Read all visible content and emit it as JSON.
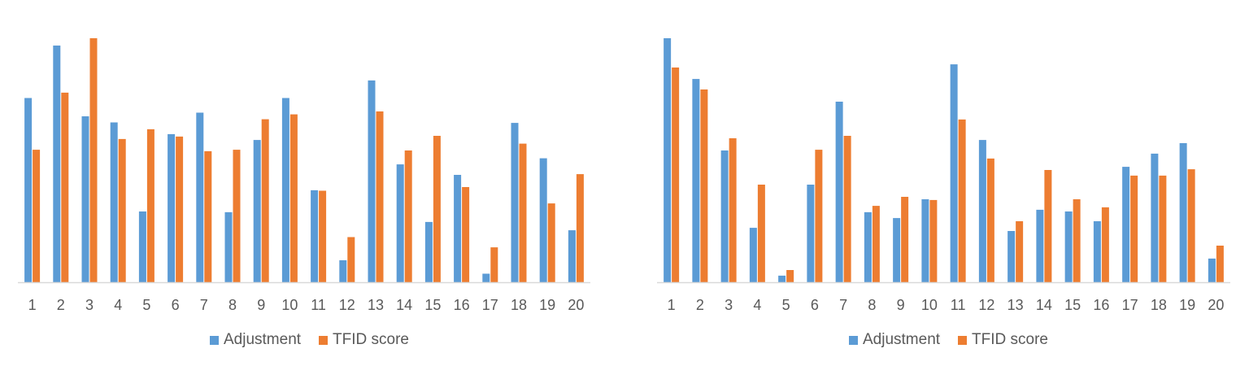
{
  "colors": {
    "adjustment": "#5B9BD5",
    "tfid": "#ED7D31",
    "axis": "#D9D9D9",
    "text": "#595959"
  },
  "chart_data": [
    {
      "type": "bar",
      "categories": [
        "1",
        "2",
        "3",
        "4",
        "5",
        "6",
        "7",
        "8",
        "9",
        "10",
        "11",
        "12",
        "13",
        "14",
        "15",
        "16",
        "17",
        "18",
        "19",
        "20"
      ],
      "series": [
        {
          "name": "Adjustment",
          "values": [
            0.755,
            0.97,
            0.68,
            0.655,
            0.29,
            0.607,
            0.695,
            0.287,
            0.583,
            0.755,
            0.377,
            0.09,
            0.827,
            0.483,
            0.247,
            0.44,
            0.035,
            0.653,
            0.508,
            0.213
          ]
        },
        {
          "name": "TFID score",
          "values": [
            0.543,
            0.777,
            1.0,
            0.587,
            0.627,
            0.597,
            0.537,
            0.543,
            0.668,
            0.688,
            0.375,
            0.185,
            0.7,
            0.54,
            0.6,
            0.39,
            0.143,
            0.568,
            0.323,
            0.443
          ]
        }
      ],
      "legend_position": "bottom",
      "grid": false
    },
    {
      "type": "bar",
      "categories": [
        "1",
        "2",
        "3",
        "4",
        "5",
        "6",
        "7",
        "8",
        "9",
        "10",
        "11",
        "12",
        "13",
        "14",
        "15",
        "16",
        "17",
        "18",
        "19",
        "20"
      ],
      "series": [
        {
          "name": "Adjustment",
          "values": [
            1.0,
            0.833,
            0.54,
            0.223,
            0.027,
            0.4,
            0.74,
            0.287,
            0.263,
            0.34,
            0.893,
            0.583,
            0.21,
            0.297,
            0.29,
            0.25,
            0.473,
            0.527,
            0.57,
            0.097
          ]
        },
        {
          "name": "TFID score",
          "values": [
            0.88,
            0.79,
            0.59,
            0.4,
            0.05,
            0.543,
            0.6,
            0.313,
            0.35,
            0.337,
            0.667,
            0.507,
            0.25,
            0.46,
            0.34,
            0.307,
            0.437,
            0.437,
            0.463,
            0.15
          ]
        }
      ],
      "legend_position": "bottom",
      "grid": false
    }
  ]
}
